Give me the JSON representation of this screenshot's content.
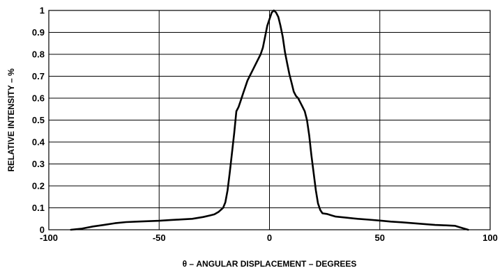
{
  "chart_data": {
    "type": "line",
    "title": "",
    "xlabel": "θ – ANGULAR DISPLACEMENT – DEGREES",
    "ylabel": "RELATIVE INTENSITY – %",
    "xlim": [
      -100,
      100
    ],
    "ylim": [
      0,
      1
    ],
    "x_ticks": [
      -100,
      -50,
      0,
      50,
      100
    ],
    "x_tick_labels": [
      "-100",
      "-50",
      "0",
      "50",
      "100"
    ],
    "y_ticks": [
      0,
      0.1,
      0.2,
      0.3,
      0.4,
      0.5,
      0.6,
      0.7,
      0.8,
      0.9,
      1
    ],
    "y_tick_labels": [
      "0",
      "0.1",
      "0.2",
      "0.3",
      "0.4",
      "0.5",
      "0.6",
      "0.7",
      "0.8",
      "0.9",
      "1"
    ],
    "grid": true,
    "legend": "none",
    "line_color": "#000000",
    "series": [
      {
        "name": "",
        "x": [
          -90,
          -85,
          -80,
          -75,
          -70,
          -65,
          -60,
          -55,
          -50,
          -45,
          -40,
          -35,
          -30,
          -27,
          -25,
          -23,
          -21,
          -20,
          -19,
          -18,
          -17,
          -16,
          -15,
          -14,
          -13,
          -12,
          -11,
          -10,
          -9,
          -8,
          -6,
          -4,
          -3,
          -2,
          -1,
          0,
          1,
          2,
          3,
          4,
          5,
          6,
          7,
          8,
          9,
          10,
          11,
          12,
          13,
          14,
          15,
          16,
          17,
          18,
          19,
          20,
          21,
          22,
          23,
          24,
          26,
          28,
          30,
          35,
          40,
          45,
          50,
          55,
          60,
          65,
          70,
          75,
          80,
          84,
          86,
          88,
          90
        ],
        "y": [
          0.0,
          0.005,
          0.015,
          0.022,
          0.03,
          0.035,
          0.037,
          0.039,
          0.041,
          0.044,
          0.047,
          0.05,
          0.058,
          0.065,
          0.07,
          0.082,
          0.1,
          0.125,
          0.18,
          0.26,
          0.35,
          0.44,
          0.54,
          0.56,
          0.59,
          0.62,
          0.65,
          0.68,
          0.7,
          0.72,
          0.76,
          0.8,
          0.83,
          0.88,
          0.93,
          0.96,
          0.99,
          1.0,
          0.99,
          0.97,
          0.93,
          0.88,
          0.81,
          0.76,
          0.71,
          0.67,
          0.63,
          0.61,
          0.6,
          0.58,
          0.56,
          0.54,
          0.5,
          0.43,
          0.34,
          0.26,
          0.18,
          0.12,
          0.09,
          0.075,
          0.072,
          0.066,
          0.06,
          0.055,
          0.05,
          0.046,
          0.042,
          0.037,
          0.034,
          0.03,
          0.026,
          0.022,
          0.02,
          0.018,
          0.012,
          0.006,
          0.0
        ]
      }
    ]
  }
}
